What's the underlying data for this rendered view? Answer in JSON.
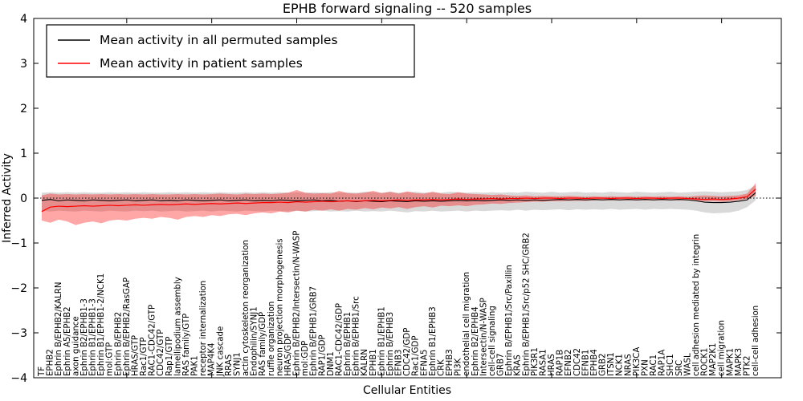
{
  "chart_data": {
    "type": "line",
    "title": "EPHB forward signaling -- 520 samples",
    "xlabel": "Cellular Entities",
    "ylabel": "Inferred Activity",
    "ylim": [
      -4,
      4
    ],
    "yticks": [
      4,
      3,
      2,
      1,
      0,
      -1,
      -2,
      -3,
      -4
    ],
    "grid": false,
    "legend_position": "upper left",
    "zero_reference_line": true,
    "colors": {
      "permuted_line": "#000000",
      "patient_line": "#ff0000",
      "permuted_band": "#000000",
      "patient_band": "#ff0000",
      "frame": "#000000",
      "background": "#ffffff"
    },
    "categories": [
      "TF",
      "EPHB2",
      "Ephrin B/EPHB2/KALRN",
      "Ephrin A5/EPHB2",
      "axon guidance",
      "Ephrin B2/EPHB1-3",
      "Ephrin B1/EPHB1-3",
      "Ephrin B1/EPHB1-2/NCK1",
      "mol:GTP",
      "Ephrin B/EPHB2",
      "Ephrin B/EPHB2/RasGAP",
      "HRAS/GTP",
      "Rac1/GTP",
      "RAC1-CDC42/GTP",
      "CDC42/GTP",
      "Rap1/GTP",
      "lamellipodium assembly",
      "RAS family/GTP",
      "PAK1",
      "receptor internalization",
      "MAP4K4",
      "JNK cascade",
      "RRAS",
      "SYNJ1",
      "actin cytoskeleton reorganization",
      "Endophilin/SYNJ1",
      "RAS family/GDP",
      "ruffle organization",
      "neuron projection morphogenesis",
      "HRAS/GDP",
      "Ephrin B/EPHB2/Intersectin/N-WASP",
      "mol:GDP",
      "Ephrin B/EPHB1/GRB7",
      "RAP1/GDP",
      "DNM1",
      "RAC1-CDC42/GDP",
      "Ephrin B/EPHB1",
      "Ephrin B/EPHB1/Src",
      "KALRN",
      "EPHB1",
      "Ephrin B1/EPHB1",
      "Ephrin B/EPHB3",
      "EFNB3",
      "CDC42/GDP",
      "Rac1/GDP",
      "EFNA5",
      "Ephrin B1/EPHB3",
      "CRK",
      "EPHB3",
      "PI3K",
      "endothelial cell migration",
      "Ephrin B2/EPHB4",
      "Intersectin/N-WASP",
      "cell-cell signaling",
      "GRB7",
      "Ephrin B/EPHB1/Src/Paxillin",
      "KRAS",
      "Ephrin B/EPHB1/Src/p52 SHC/GRB2",
      "PIK3R1",
      "RASA1",
      "HRAS",
      "RAP1B",
      "EFNB2",
      "CDC42",
      "EFNB1",
      "EPHB4",
      "GRB2",
      "ITSN1",
      "NCK1",
      "NRAS",
      "PIK3CA",
      "PXN",
      "RAC1",
      "RAP1A",
      "SHC1",
      "SRC",
      "WASL",
      "cell adhesion mediated by integrin",
      "ROCK1",
      "MAP2K1",
      "cell migration",
      "MAPK1",
      "MAPK3",
      "PTK2",
      "cell-cell adhesion"
    ],
    "series": [
      {
        "name": "Mean activity in all permuted samples",
        "color": "#000000",
        "values": [
          -0.05,
          -0.03,
          -0.06,
          -0.04,
          -0.05,
          -0.06,
          -0.04,
          -0.05,
          -0.06,
          -0.05,
          -0.04,
          -0.06,
          -0.05,
          -0.04,
          -0.06,
          -0.05,
          -0.06,
          -0.04,
          -0.05,
          -0.06,
          -0.05,
          -0.04,
          -0.06,
          -0.05,
          -0.04,
          -0.06,
          -0.05,
          -0.06,
          -0.04,
          -0.05,
          -0.06,
          -0.05,
          -0.04,
          -0.06,
          -0.05,
          -0.07,
          -0.06,
          -0.08,
          -0.06,
          -0.07,
          -0.08,
          -0.06,
          -0.07,
          -0.08,
          -0.06,
          -0.07,
          -0.06,
          -0.07,
          -0.06,
          -0.05,
          -0.06,
          -0.05,
          -0.06,
          -0.05,
          -0.04,
          -0.05,
          -0.04,
          -0.05,
          -0.04,
          -0.05,
          -0.04,
          -0.03,
          -0.04,
          -0.03,
          -0.04,
          -0.03,
          -0.04,
          -0.03,
          -0.04,
          -0.03,
          -0.04,
          -0.03,
          -0.04,
          -0.03,
          -0.04,
          -0.03,
          -0.04,
          -0.06,
          -0.09,
          -0.1,
          -0.1,
          -0.09,
          -0.07,
          -0.04,
          0.12
        ],
        "band_hi": [
          0.12,
          0.13,
          0.12,
          0.13,
          0.12,
          0.13,
          0.12,
          0.12,
          0.13,
          0.12,
          0.13,
          0.12,
          0.13,
          0.12,
          0.12,
          0.13,
          0.12,
          0.13,
          0.12,
          0.13,
          0.12,
          0.13,
          0.12,
          0.12,
          0.13,
          0.12,
          0.13,
          0.12,
          0.13,
          0.12,
          0.13,
          0.12,
          0.13,
          0.12,
          0.13,
          0.12,
          0.13,
          0.12,
          0.14,
          0.13,
          0.12,
          0.14,
          0.12,
          0.13,
          0.14,
          0.12,
          0.13,
          0.12,
          0.14,
          0.13,
          0.12,
          0.13,
          0.12,
          0.13,
          0.12,
          0.13,
          0.12,
          0.14,
          0.13,
          0.12,
          0.14,
          0.12,
          0.13,
          0.14,
          0.12,
          0.13,
          0.12,
          0.14,
          0.13,
          0.12,
          0.14,
          0.13,
          0.12,
          0.13,
          0.14,
          0.12,
          0.13,
          0.14,
          0.15,
          0.14,
          0.13,
          0.14,
          0.15,
          0.18,
          0.28
        ],
        "band_lo": [
          -0.28,
          -0.3,
          -0.28,
          -0.29,
          -0.3,
          -0.28,
          -0.29,
          -0.3,
          -0.28,
          -0.29,
          -0.3,
          -0.28,
          -0.29,
          -0.28,
          -0.3,
          -0.29,
          -0.28,
          -0.3,
          -0.29,
          -0.28,
          -0.3,
          -0.28,
          -0.29,
          -0.3,
          -0.28,
          -0.29,
          -0.3,
          -0.28,
          -0.29,
          -0.3,
          -0.28,
          -0.3,
          -0.29,
          -0.28,
          -0.3,
          -0.29,
          -0.3,
          -0.28,
          -0.3,
          -0.29,
          -0.3,
          -0.28,
          -0.3,
          -0.32,
          -0.29,
          -0.3,
          -0.28,
          -0.3,
          -0.29,
          -0.28,
          -0.3,
          -0.28,
          -0.29,
          -0.28,
          -0.27,
          -0.28,
          -0.26,
          -0.28,
          -0.26,
          -0.27,
          -0.26,
          -0.25,
          -0.27,
          -0.25,
          -0.26,
          -0.25,
          -0.26,
          -0.24,
          -0.26,
          -0.25,
          -0.24,
          -0.26,
          -0.24,
          -0.25,
          -0.24,
          -0.25,
          -0.26,
          -0.28,
          -0.32,
          -0.34,
          -0.33,
          -0.32,
          -0.28,
          -0.2,
          -0.05
        ]
      },
      {
        "name": "Mean activity in patient samples",
        "color": "#ff0000",
        "values": [
          -0.3,
          -0.2,
          -0.18,
          -0.19,
          -0.18,
          -0.17,
          -0.18,
          -0.17,
          -0.16,
          -0.17,
          -0.16,
          -0.15,
          -0.16,
          -0.15,
          -0.14,
          -0.15,
          -0.14,
          -0.13,
          -0.14,
          -0.13,
          -0.12,
          -0.13,
          -0.12,
          -0.11,
          -0.12,
          -0.11,
          -0.1,
          -0.1,
          -0.09,
          -0.1,
          -0.08,
          -0.09,
          -0.08,
          -0.07,
          -0.08,
          -0.07,
          -0.06,
          -0.07,
          -0.06,
          -0.05,
          -0.06,
          -0.05,
          -0.04,
          -0.05,
          -0.04,
          -0.04,
          -0.03,
          -0.04,
          -0.03,
          -0.02,
          -0.03,
          -0.02,
          -0.02,
          -0.01,
          -0.02,
          -0.01,
          -0.01,
          0.0,
          -0.01,
          0.0,
          0.0,
          -0.01,
          0.0,
          0.0,
          -0.01,
          0.0,
          0.0,
          -0.01,
          0.0,
          0.0,
          -0.01,
          0.0,
          0.0,
          -0.01,
          0.0,
          0.0,
          -0.01,
          -0.02,
          -0.03,
          -0.02,
          -0.03,
          -0.02,
          0.0,
          0.03,
          0.2
        ],
        "band_hi": [
          0.06,
          0.1,
          0.08,
          0.09,
          0.08,
          0.09,
          0.08,
          0.09,
          0.08,
          0.09,
          0.08,
          0.09,
          0.08,
          0.09,
          0.08,
          0.08,
          0.09,
          0.08,
          0.09,
          0.08,
          0.09,
          0.1,
          0.09,
          0.08,
          0.1,
          0.09,
          0.1,
          0.09,
          0.1,
          0.12,
          0.18,
          0.12,
          0.1,
          0.11,
          0.1,
          0.16,
          0.11,
          0.1,
          0.12,
          0.16,
          0.11,
          0.14,
          0.1,
          0.15,
          0.11,
          0.1,
          0.14,
          0.1,
          0.09,
          0.13,
          0.1,
          0.09,
          0.08,
          0.07,
          0.08,
          0.06,
          0.05,
          0.06,
          0.04,
          0.05,
          0.04,
          0.04,
          0.05,
          0.04,
          0.03,
          0.04,
          0.03,
          0.04,
          0.03,
          0.04,
          0.03,
          0.04,
          0.03,
          0.04,
          0.03,
          0.04,
          0.03,
          0.05,
          0.06,
          0.05,
          0.04,
          0.05,
          0.06,
          0.1,
          0.33
        ],
        "band_lo": [
          -0.5,
          -0.55,
          -0.48,
          -0.52,
          -0.6,
          -0.55,
          -0.52,
          -0.56,
          -0.5,
          -0.48,
          -0.5,
          -0.46,
          -0.44,
          -0.46,
          -0.42,
          -0.44,
          -0.48,
          -0.42,
          -0.4,
          -0.42,
          -0.38,
          -0.4,
          -0.36,
          -0.35,
          -0.38,
          -0.34,
          -0.32,
          -0.34,
          -0.3,
          -0.32,
          -0.28,
          -0.3,
          -0.26,
          -0.28,
          -0.25,
          -0.28,
          -0.24,
          -0.26,
          -0.22,
          -0.25,
          -0.21,
          -0.23,
          -0.2,
          -0.24,
          -0.2,
          -0.18,
          -0.21,
          -0.17,
          -0.18,
          -0.16,
          -0.18,
          -0.15,
          -0.14,
          -0.12,
          -0.13,
          -0.11,
          -0.1,
          -0.09,
          -0.08,
          -0.08,
          -0.07,
          -0.07,
          -0.06,
          -0.06,
          -0.06,
          -0.05,
          -0.05,
          -0.05,
          -0.05,
          -0.05,
          -0.05,
          -0.05,
          -0.05,
          -0.05,
          -0.05,
          -0.05,
          -0.05,
          -0.06,
          -0.07,
          -0.07,
          -0.08,
          -0.07,
          -0.05,
          -0.02,
          0.05
        ]
      }
    ]
  }
}
